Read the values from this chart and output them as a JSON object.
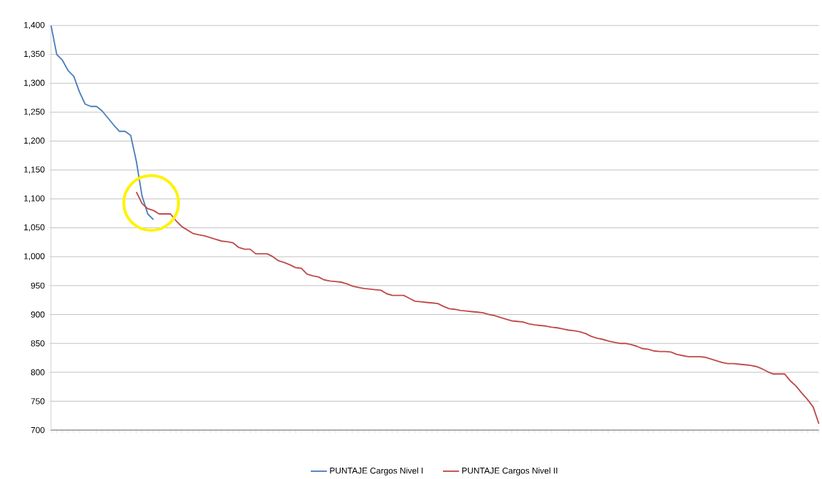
{
  "chart_data": {
    "type": "line",
    "categories": [
      null,
      null,
      null,
      null,
      null,
      null,
      null,
      null,
      null,
      null,
      null,
      null,
      null,
      null,
      null,
      null,
      null,
      null,
      null,
      null,
      null,
      null,
      null,
      null,
      null,
      null,
      null,
      null,
      null,
      null,
      null,
      null,
      null,
      null,
      null,
      null,
      null,
      null,
      null,
      null,
      null,
      null,
      null,
      null,
      null,
      null,
      null,
      null,
      null,
      null,
      null,
      null,
      null,
      null,
      null,
      null,
      null,
      null,
      null,
      null,
      null,
      null,
      null,
      null,
      null,
      null,
      null,
      null,
      null,
      null,
      null,
      null,
      null,
      null,
      null,
      null,
      null,
      null,
      null,
      null,
      null,
      null,
      null,
      null,
      null,
      null,
      null,
      null,
      null,
      null,
      null,
      null,
      null,
      null,
      null,
      null,
      null,
      null,
      null,
      null,
      null,
      null,
      null,
      null,
      null,
      null,
      null,
      null,
      null,
      null,
      null,
      null,
      null,
      null,
      null,
      null,
      null,
      null,
      null,
      null,
      null,
      null,
      null,
      null,
      null,
      null,
      null,
      null,
      null,
      null,
      null,
      null,
      null,
      null,
      null,
      null
    ],
    "series": [
      {
        "name": "PUNTAJE Cargos Nivel I",
        "color": "#4a7ebb",
        "values": [
          1400,
          1350,
          1340,
          1322,
          1312,
          1285,
          1264,
          1260,
          1260,
          1252,
          1240,
          1228,
          1217,
          1217,
          1210,
          1165,
          1105,
          1074,
          1064,
          null,
          null,
          null,
          null,
          null,
          null,
          null,
          null,
          null,
          null,
          null,
          null,
          null,
          null,
          null,
          null,
          null,
          null,
          null,
          null,
          null,
          null,
          null,
          null,
          null,
          null,
          null,
          null,
          null,
          null,
          null,
          null,
          null,
          null,
          null,
          null,
          null,
          null,
          null,
          null,
          null,
          null,
          null,
          null,
          null,
          null,
          null,
          null,
          null,
          null,
          null,
          null,
          null,
          null,
          null,
          null,
          null,
          null,
          null,
          null,
          null,
          null,
          null,
          null,
          null,
          null,
          null,
          null,
          null,
          null,
          null,
          null,
          null,
          null,
          null,
          null,
          null,
          null,
          null,
          null,
          null,
          null,
          null,
          null,
          null,
          null,
          null,
          null,
          null,
          null,
          null,
          null,
          null,
          null,
          null,
          null,
          null,
          null,
          null,
          null,
          null,
          null,
          null,
          null,
          null,
          null,
          null,
          null,
          null,
          null,
          null,
          null,
          null,
          null,
          null,
          null,
          null
        ]
      },
      {
        "name": "PUNTAJE Cargos Nivel II",
        "color": "#be4b48",
        "values": [
          null,
          null,
          null,
          null,
          null,
          null,
          null,
          null,
          null,
          null,
          null,
          null,
          null,
          null,
          null,
          1112,
          1092,
          1083,
          1080,
          1074,
          1074,
          1074,
          1062,
          1052,
          1046,
          1040,
          1038,
          1036,
          1033,
          1030,
          1027,
          1026,
          1024,
          1016,
          1013,
          1013,
          1005,
          1005,
          1005,
          1000,
          993,
          990,
          986,
          981,
          980,
          970,
          967,
          965,
          960,
          958,
          957,
          956,
          953,
          949,
          947,
          945,
          944,
          943,
          942,
          936,
          933,
          933,
          933,
          928,
          923,
          922,
          921,
          920,
          919,
          914,
          910,
          909,
          907,
          906,
          905,
          904,
          903,
          900,
          898,
          895,
          892,
          889,
          888,
          887,
          884,
          882,
          881,
          880,
          878,
          877,
          875,
          873,
          872,
          870,
          867,
          862,
          859,
          857,
          854,
          852,
          850,
          850,
          848,
          845,
          841,
          840,
          837,
          836,
          836,
          835,
          831,
          829,
          827,
          827,
          827,
          826,
          823,
          820,
          817,
          815,
          815,
          814,
          813,
          812,
          810,
          806,
          801,
          797,
          797,
          797,
          785,
          776,
          764,
          753,
          740,
          711
        ]
      }
    ],
    "ylim": [
      700,
      1400
    ],
    "yticks": [
      700,
      750,
      800,
      850,
      900,
      950,
      {
        "value": 1000,
        "label": "1,000"
      },
      {
        "value": 1050,
        "label": "1,050"
      },
      {
        "value": 1100,
        "label": "1,100"
      },
      {
        "value": 1150,
        "label": "1,150"
      },
      {
        "value": 1200,
        "label": "1,200"
      },
      {
        "value": 1250,
        "label": "1,250"
      },
      {
        "value": 1300,
        "label": "1,300"
      },
      {
        "value": 1350,
        "label": "1,350"
      },
      {
        "value": 1400,
        "label": "1,400"
      }
    ],
    "grid": "y",
    "legend": "bottom",
    "marker": "none",
    "line_style": "solid"
  }
}
